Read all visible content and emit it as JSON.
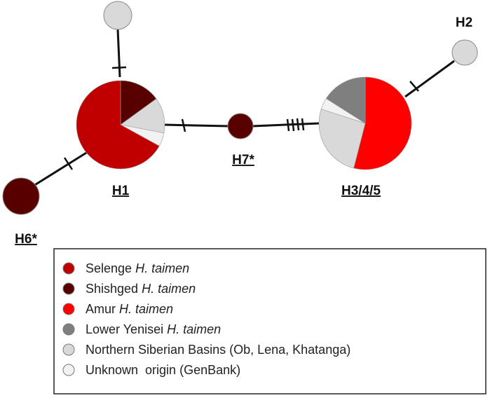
{
  "nodes": [
    {
      "label": "H1",
      "shares": [
        67,
        15,
        0,
        0,
        13,
        5
      ]
    },
    {
      "label": "H3/4/5",
      "shares": [
        0,
        0,
        54,
        16,
        26,
        4
      ]
    },
    {
      "label": "H7*"
    },
    {
      "label": "H6*"
    },
    {
      "label": "H2"
    }
  ],
  "legend": {
    "entries": [
      {
        "name": "Selenge",
        "species": "H. taimen",
        "color": "#c00000"
      },
      {
        "name": "Shishged",
        "species": "H. taimen",
        "color": "#580000"
      },
      {
        "name": "Amur",
        "species": "H. taimen",
        "color": "#ff0000"
      },
      {
        "name": "Lower Yenisei",
        "species": "H. taimen",
        "color": "#7f7f7f"
      },
      {
        "name": "Northern Siberian Basins (Ob, Lena, Khatanga)",
        "color": "#d9d9d9"
      },
      {
        "name": "Unknown  origin (GenBank)",
        "color": "#f2f2f2"
      }
    ]
  }
}
